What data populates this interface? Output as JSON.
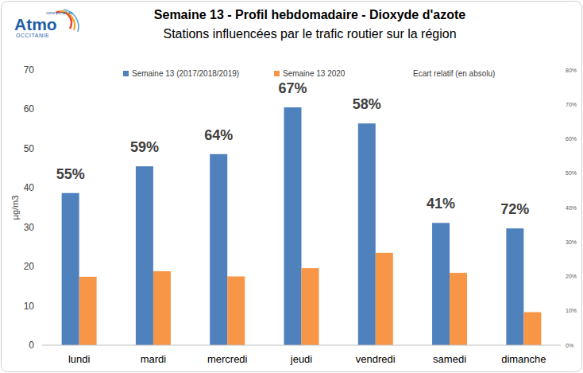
{
  "logo": {
    "name": "Atmo",
    "region": "OCCITANIE",
    "tagline": "votre portail air"
  },
  "chart_data": {
    "type": "bar",
    "title": "Semaine 13 - Profil hebdomadaire - Dioxyde d'azote",
    "subtitle": "Stations influencées par le trafic routier sur la région",
    "y_label": "µg/m3",
    "categories": [
      "lundi",
      "mardi",
      "mercredi",
      "jeudi",
      "vendredi",
      "samedi",
      "dimanche"
    ],
    "series": [
      {
        "name": "Semaine 13 (2017/2018/2019)",
        "color": "#4f81bd",
        "values": [
          38.7,
          45.5,
          48.6,
          60.5,
          56.4,
          31.1,
          29.7
        ]
      },
      {
        "name": "Semaine 13 2020",
        "color": "#f79646",
        "values": [
          17.4,
          18.8,
          17.5,
          19.6,
          23.5,
          18.4,
          8.4
        ]
      },
      {
        "name": "Ecart relatif (en absolu)",
        "type": "text",
        "axis": "y2",
        "values": [
          55,
          59,
          64,
          67,
          58,
          41,
          72
        ],
        "value_labels": [
          "55%",
          "59%",
          "64%",
          "67%",
          "58%",
          "41%",
          "72%"
        ]
      }
    ],
    "ylim": [
      0,
      70
    ],
    "yticks": [
      0,
      10,
      20,
      30,
      40,
      50,
      60,
      70
    ],
    "y2lim": [
      0,
      80
    ],
    "y2ticks": [
      {
        "value": 0,
        "label": "0%"
      },
      {
        "value": 10,
        "label": "10%"
      },
      {
        "value": 20,
        "label": "20%"
      },
      {
        "value": 30,
        "label": "30%"
      },
      {
        "value": 40,
        "label": "40%"
      },
      {
        "value": 50,
        "label": "50%"
      },
      {
        "value": 60,
        "label": "60%"
      },
      {
        "value": 70,
        "label": "70%"
      },
      {
        "value": 80,
        "label": "80%"
      }
    ],
    "grid": false,
    "legend": "top",
    "data_labels": true
  }
}
